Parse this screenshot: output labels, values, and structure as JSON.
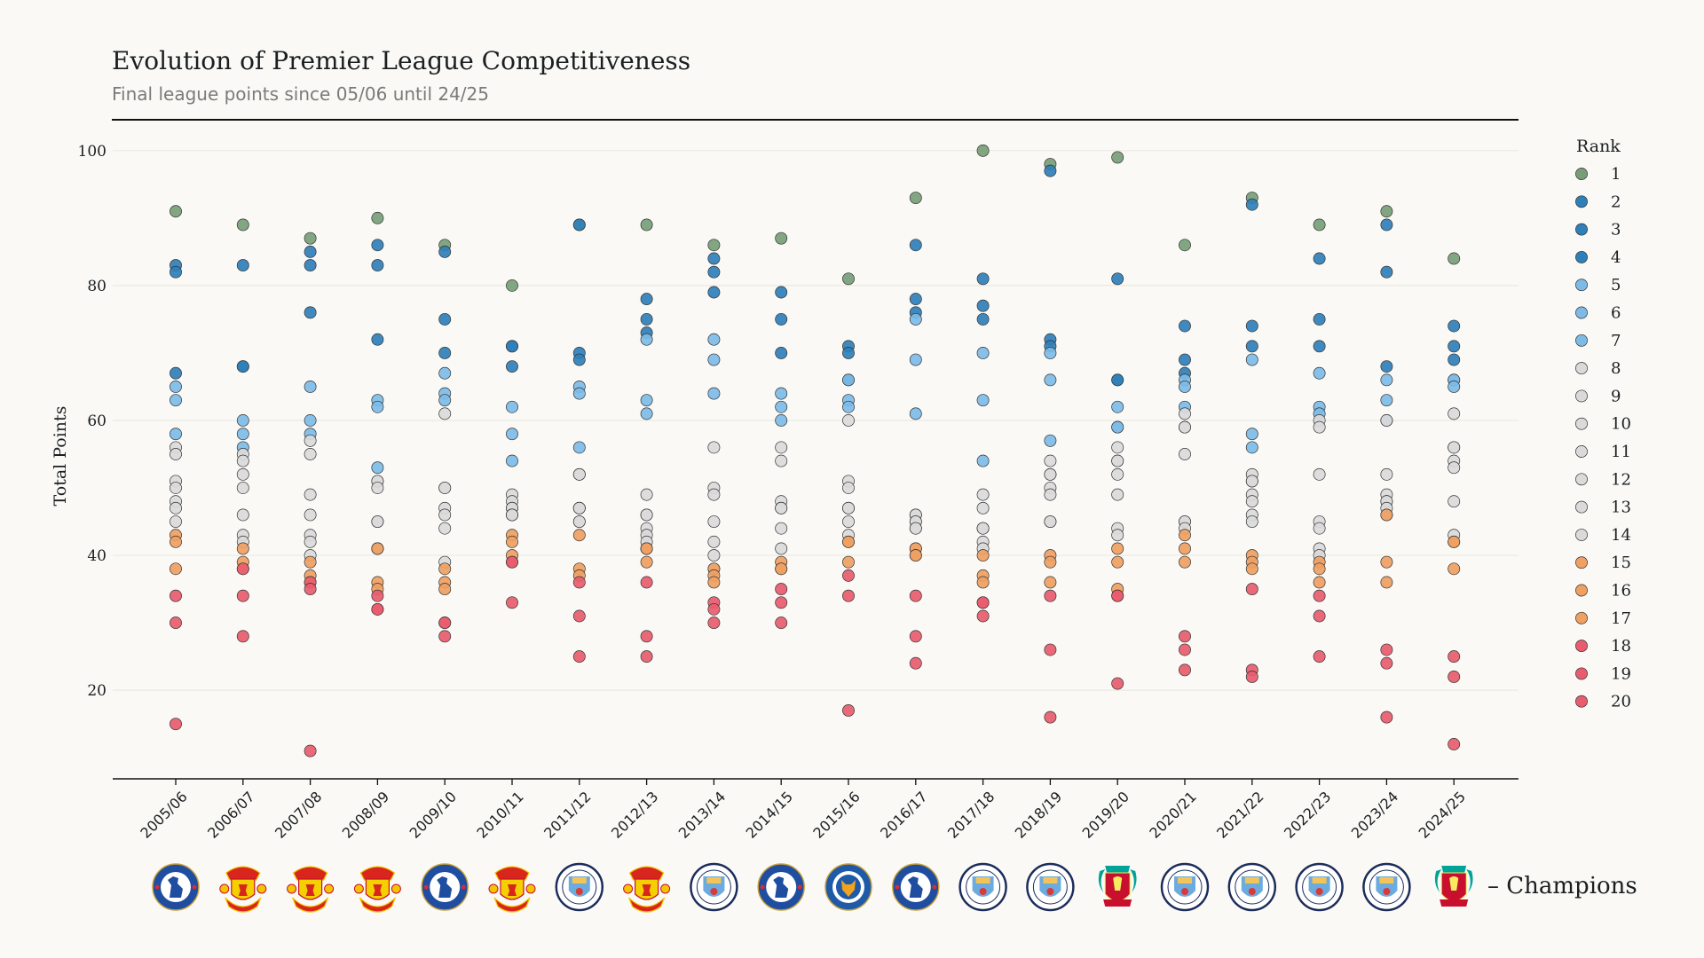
{
  "chart_data": {
    "type": "scatter",
    "title": "Evolution of Premier League Competitiveness",
    "subtitle": "Final league points since 05/06 until 24/25",
    "xlabel": "",
    "ylabel": "Total Points",
    "ylim": [
      7,
      103
    ],
    "yticks": [
      20,
      40,
      60,
      80,
      100
    ],
    "grid": true,
    "legend": {
      "title": "Rank",
      "placement": "right"
    },
    "categories": [
      "2005/06",
      "2006/07",
      "2007/08",
      "2008/09",
      "2009/10",
      "2010/11",
      "2011/12",
      "2012/13",
      "2013/14",
      "2014/15",
      "2015/16",
      "2016/17",
      "2017/18",
      "2018/19",
      "2019/20",
      "2020/21",
      "2021/22",
      "2022/23",
      "2023/24",
      "2024/25"
    ],
    "ranks": [
      1,
      2,
      3,
      4,
      5,
      6,
      7,
      8,
      9,
      10,
      11,
      12,
      13,
      14,
      15,
      16,
      17,
      18,
      19,
      20
    ],
    "rank_colors": {
      "1": "#779e77",
      "2-4": "#2f7fb8",
      "5-7": "#7dbbe6",
      "8-14": "#dadada",
      "15-17": "#efa062",
      "18-20": "#e85c6e"
    },
    "points_by_season": [
      [
        91,
        83,
        82,
        67,
        65,
        63,
        58,
        56,
        55,
        51,
        50,
        48,
        47,
        45,
        43,
        42,
        38,
        34,
        30,
        15
      ],
      [
        89,
        83,
        68,
        68,
        60,
        58,
        56,
        55,
        54,
        52,
        50,
        46,
        43,
        42,
        41,
        39,
        38,
        38,
        34,
        28
      ],
      [
        87,
        85,
        83,
        76,
        65,
        60,
        58,
        57,
        55,
        49,
        46,
        43,
        42,
        40,
        39,
        37,
        36,
        36,
        35,
        11
      ],
      [
        90,
        86,
        83,
        72,
        63,
        62,
        53,
        51,
        51,
        50,
        45,
        45,
        41,
        41,
        41,
        36,
        35,
        34,
        32,
        32
      ],
      [
        86,
        85,
        75,
        70,
        67,
        64,
        63,
        61,
        50,
        50,
        47,
        46,
        44,
        39,
        38,
        36,
        35,
        30,
        30,
        28
      ],
      [
        80,
        71,
        71,
        68,
        62,
        58,
        54,
        49,
        48,
        47,
        47,
        46,
        46,
        46,
        43,
        42,
        40,
        39,
        39,
        33
      ],
      [
        89,
        89,
        70,
        69,
        65,
        64,
        56,
        52,
        52,
        47,
        47,
        47,
        45,
        45,
        43,
        38,
        37,
        36,
        31,
        25
      ],
      [
        89,
        78,
        75,
        73,
        72,
        63,
        61,
        49,
        46,
        46,
        44,
        43,
        42,
        41,
        41,
        41,
        39,
        36,
        28,
        25
      ],
      [
        86,
        84,
        82,
        79,
        72,
        69,
        64,
        56,
        50,
        49,
        45,
        42,
        40,
        38,
        38,
        37,
        36,
        33,
        32,
        30
      ],
      [
        87,
        79,
        75,
        70,
        64,
        62,
        60,
        56,
        54,
        48,
        47,
        47,
        44,
        41,
        39,
        38,
        38,
        35,
        33,
        30
      ],
      [
        81,
        71,
        70,
        66,
        66,
        63,
        62,
        60,
        51,
        50,
        47,
        47,
        45,
        43,
        42,
        42,
        39,
        37,
        34,
        17
      ],
      [
        93,
        86,
        78,
        76,
        75,
        69,
        61,
        46,
        46,
        45,
        45,
        44,
        44,
        41,
        41,
        40,
        40,
        34,
        28,
        24
      ],
      [
        100,
        81,
        77,
        75,
        70,
        63,
        54,
        49,
        47,
        44,
        44,
        44,
        42,
        41,
        40,
        37,
        36,
        33,
        33,
        31
      ],
      [
        98,
        97,
        72,
        71,
        70,
        66,
        57,
        54,
        52,
        52,
        50,
        49,
        45,
        45,
        40,
        39,
        36,
        34,
        26,
        16
      ],
      [
        99,
        81,
        66,
        66,
        62,
        59,
        59,
        56,
        54,
        54,
        52,
        49,
        44,
        43,
        41,
        39,
        35,
        34,
        34,
        21
      ],
      [
        86,
        74,
        69,
        67,
        66,
        65,
        62,
        61,
        59,
        59,
        55,
        45,
        45,
        44,
        43,
        41,
        39,
        28,
        26,
        23
      ],
      [
        93,
        92,
        74,
        71,
        69,
        58,
        56,
        52,
        51,
        51,
        49,
        48,
        46,
        45,
        40,
        39,
        38,
        35,
        23,
        22
      ],
      [
        89,
        84,
        75,
        71,
        67,
        62,
        61,
        60,
        59,
        52,
        45,
        44,
        41,
        40,
        39,
        38,
        36,
        34,
        31,
        25
      ],
      [
        91,
        89,
        82,
        68,
        66,
        63,
        60,
        60,
        52,
        49,
        48,
        48,
        47,
        46,
        46,
        39,
        36,
        26,
        24,
        16
      ],
      [
        84,
        74,
        71,
        69,
        66,
        66,
        65,
        61,
        56,
        56,
        54,
        53,
        48,
        43,
        42,
        42,
        38,
        25,
        22,
        12
      ]
    ],
    "champions": [
      "chelsea",
      "manchester-united",
      "manchester-united",
      "manchester-united",
      "chelsea",
      "manchester-united",
      "manchester-city",
      "manchester-united",
      "manchester-city",
      "chelsea",
      "leicester-city",
      "chelsea",
      "manchester-city",
      "manchester-city",
      "liverpool",
      "manchester-city",
      "manchester-city",
      "manchester-city",
      "manchester-city",
      "liverpool"
    ],
    "champions_label": "– Champions"
  }
}
